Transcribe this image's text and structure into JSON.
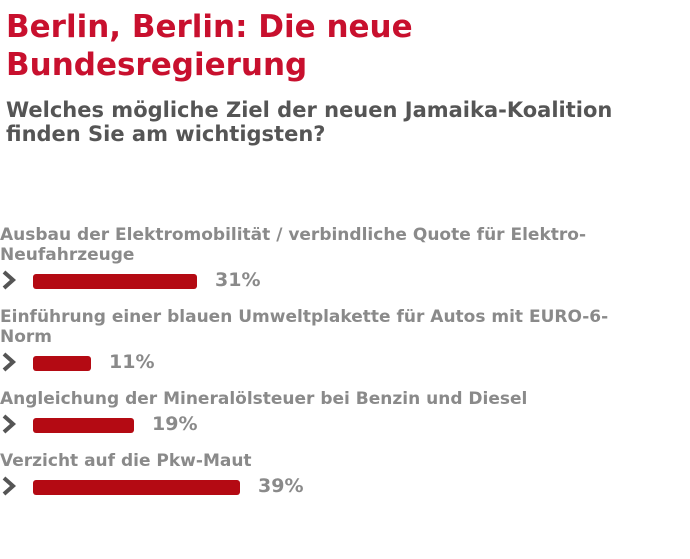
{
  "header": {
    "title_line1": "Berlin, Berlin: Die neue",
    "title_line2": "Bundesregierung",
    "question": "Welches mögliche Ziel der neuen Jamaika-Koalition finden Sie am wichtigsten?"
  },
  "colors": {
    "accent": "#c8102e",
    "bar": "#b40a13",
    "label": "#8a8a8a",
    "question": "#555555"
  },
  "chart_data": {
    "type": "bar",
    "orientation": "horizontal",
    "categories": [
      "Ausbau der Elektromobilität / verbindliche Quote für Elektro-Neufahrzeuge",
      "Einführung einer blauen Umweltplakette für Autos mit EURO-6-Norm",
      "Angleichung der Mineralölsteuer bei Benzin und Diesel",
      "Verzicht auf die Pkw-Maut"
    ],
    "values": [
      31,
      11,
      19,
      39
    ],
    "value_labels": [
      "31%",
      "11%",
      "19%",
      "39%"
    ],
    "unit": "%",
    "xlim": [
      0,
      100
    ],
    "icons": [
      "chevron-right-icon"
    ]
  }
}
